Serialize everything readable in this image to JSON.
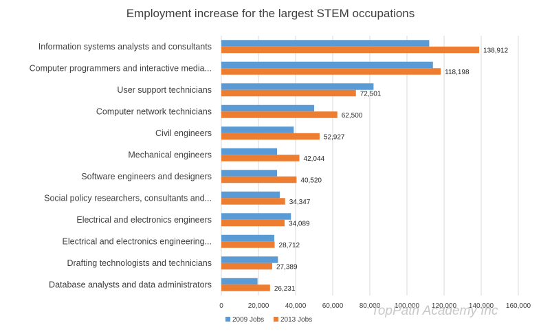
{
  "chart_data": {
    "type": "bar",
    "orientation": "horizontal",
    "title": "Employment increase for the largest STEM occupations",
    "categories": [
      "Information systems analysts and consultants",
      "Computer programmers and interactive media...",
      "User support technicians",
      "Computer network technicians",
      "Civil engineers",
      "Mechanical engineers",
      "Software engineers and designers",
      "Social policy researchers, consultants and...",
      "Electrical and electronics engineers",
      "Electrical and electronics engineering...",
      "Drafting technologists and technicians",
      "Database analysts and data administrators"
    ],
    "series": [
      {
        "name": "2009 Jobs",
        "color": "#5b9bd5",
        "values": [
          112000,
          114000,
          82000,
          50000,
          39000,
          30000,
          30000,
          31500,
          37500,
          28500,
          30500,
          19500
        ]
      },
      {
        "name": "2013 Jobs",
        "color": "#ed7d31",
        "values": [
          138912,
          118198,
          72501,
          62500,
          52927,
          42044,
          40520,
          34347,
          34089,
          28712,
          27389,
          26231
        ],
        "data_labels": [
          "138,912",
          "118,198",
          "72,501",
          "62,500",
          "52,927",
          "42,044",
          "40,520",
          "34,347",
          "34,089",
          "28,712",
          "27,389",
          "26,231"
        ]
      }
    ],
    "xlim": [
      0,
      160000
    ],
    "x_ticks": [
      "0",
      "20,000",
      "40,000",
      "60,000",
      "80,000",
      "100,000",
      "120,000",
      "140,000",
      "160,000"
    ],
    "grid": true,
    "legend_position": "bottom-left"
  },
  "watermark": "TopPath Academy Inc"
}
